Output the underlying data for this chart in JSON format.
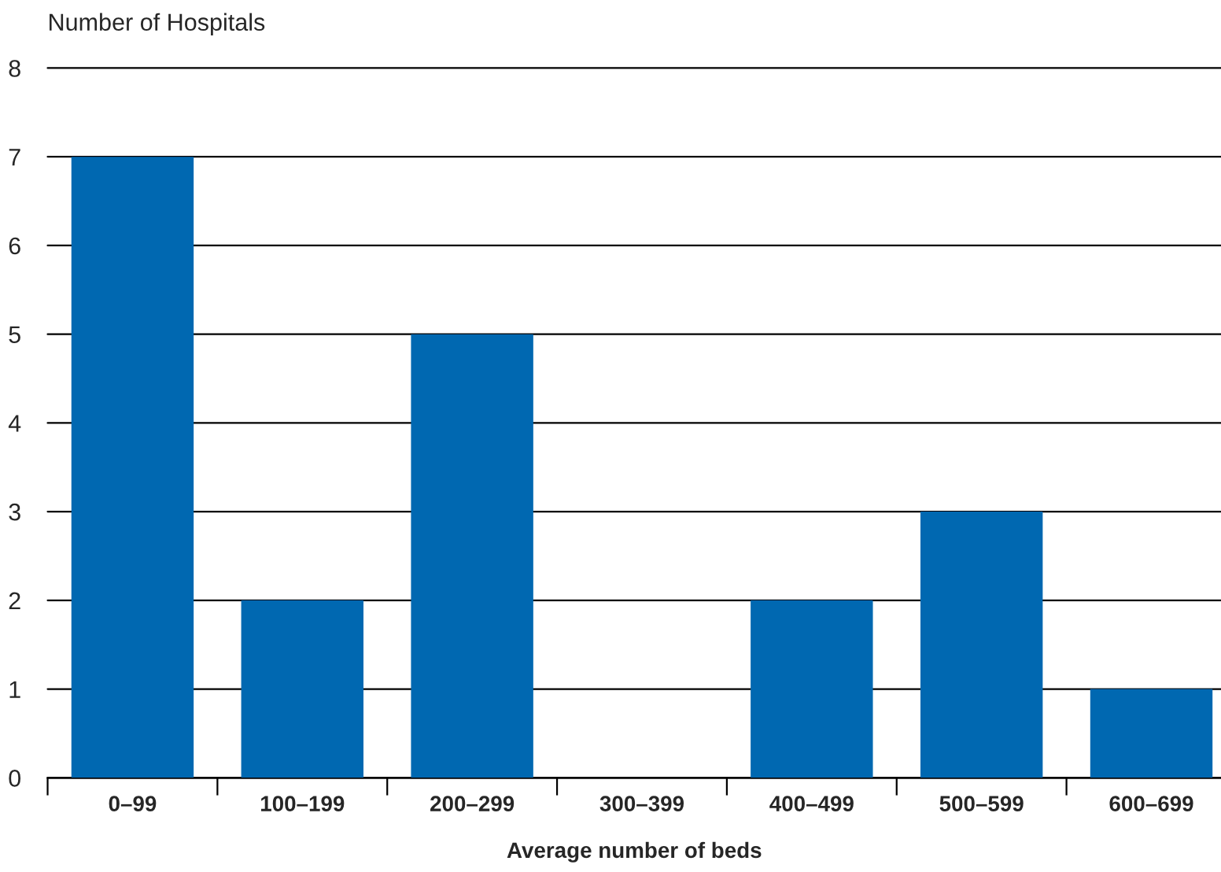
{
  "chart_data": {
    "type": "bar",
    "ylabel": "Number of Hospitals",
    "xlabel": "Average number of beds",
    "categories": [
      "0–99",
      "100–199",
      "200–299",
      "300–399",
      "400–499",
      "500–599",
      "600–699"
    ],
    "values": [
      7,
      2,
      5,
      0,
      2,
      3,
      1
    ],
    "color": "#0068b1",
    "ylim": [
      0,
      8
    ],
    "yticks": [
      0,
      1,
      2,
      3,
      4,
      5,
      6,
      7,
      8
    ],
    "grid": "y",
    "legend": false
  }
}
